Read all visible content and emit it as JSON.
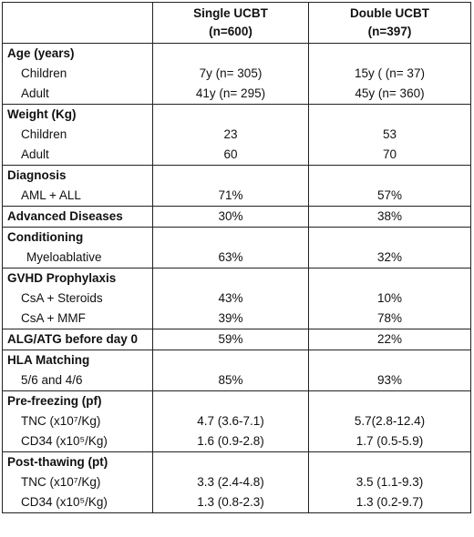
{
  "header": {
    "col1": "",
    "col2_line1": "Single UCBT",
    "col2_line2": "(n=600)",
    "col3_line1": "Double UCBT",
    "col3_line2": "(n=397)"
  },
  "sections": [
    {
      "title": "Age (years)",
      "rows": [
        {
          "label": "Children",
          "single": "7y (n= 305)",
          "double": "15y ( (n= 37)"
        },
        {
          "label": "Adult",
          "single": "41y (n= 295)",
          "double": "45y (n= 360)"
        }
      ]
    },
    {
      "title": "Weight (Kg)",
      "rows": [
        {
          "label": "Children",
          "single": "23",
          "double": "53"
        },
        {
          "label": "Adult",
          "single": "60",
          "double": "70"
        }
      ]
    },
    {
      "title": "Diagnosis",
      "rows": [
        {
          "label": "AML + ALL",
          "single": "71%",
          "double": "57%"
        }
      ]
    },
    {
      "title": "Advanced Diseases",
      "inline": {
        "single": "30%",
        "double": "38%"
      }
    },
    {
      "title": "Conditioning",
      "rows": [
        {
          "label": "Myeloablative",
          "single": "63%",
          "double": "32%"
        }
      ]
    },
    {
      "title": "GVHD Prophylaxis",
      "rows": [
        {
          "label": "CsA + Steroids",
          "single": "43%",
          "double": "10%"
        },
        {
          "label": "CsA + MMF",
          "single": "39%",
          "double": "78%"
        }
      ]
    },
    {
      "title": "ALG/ATG before day 0",
      "inline": {
        "single": "59%",
        "double": "22%"
      }
    },
    {
      "title": "HLA Matching",
      "rows": [
        {
          "label": "5/6 and 4/6",
          "single": "85%",
          "double": "93%"
        }
      ]
    },
    {
      "title": "Pre-freezing (pf)",
      "rows": [
        {
          "label": "TNC (x10⁷/Kg)",
          "single": "4.7 (3.6-7.1)",
          "double": "5.7(2.8-12.4)"
        },
        {
          "label": "CD34 (x10⁵/Kg)",
          "single": "1.6 (0.9-2.8)",
          "double": "1.7 (0.5-5.9)"
        }
      ]
    },
    {
      "title": "Post-thawing (pt)",
      "rows": [
        {
          "label": "TNC (x10⁷/Kg)",
          "single": "3.3 (2.4-4.8)",
          "double": "3.5 (1.1-9.3)"
        },
        {
          "label": "CD34 (x10⁵/Kg)",
          "single": "1.3 (0.8-2.3)",
          "double": "1.3 (0.2-9.7)"
        }
      ]
    }
  ]
}
